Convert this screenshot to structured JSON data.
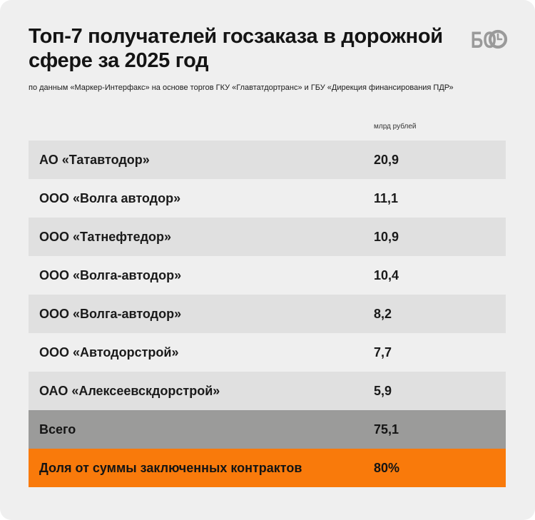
{
  "title": "Топ-7 получателей госзаказа в дорожной сфере за 2025 год",
  "subtitle": "по данным «Маркер-Интерфакс» на основе торгов ГКУ «Главтатдортранс» и ГБУ «Дирекция финансирования ПДР»",
  "logo": {
    "text": "БО",
    "icon": "clock-icon"
  },
  "colors": {
    "background": "#efefef",
    "row_shade": "#e0e0e0",
    "total_row": "#9b9b9a",
    "share_row": "#f97a0b",
    "logo": "#9a9a9a"
  },
  "chart_data": {
    "type": "table",
    "title": "Топ-7 получателей госзаказа в дорожной сфере за 2025 год",
    "subtitle": "по данным «Маркер-Интерфакс» на основе торгов ГКУ «Главтатдортранс» и ГБУ «Дирекция финансирования ПДР»",
    "unit": "млрд рублей",
    "rows": [
      {
        "name": "АО «Татавтодор»",
        "value": "20,9"
      },
      {
        "name": "ООО «Волга автодор»",
        "value": "11,1"
      },
      {
        "name": "ООО «Татнефтедор»",
        "value": "10,9"
      },
      {
        "name": "ООО «Волга-автодор»",
        "value": "10,4"
      },
      {
        "name": "ООО «Волга-автодор»",
        "value": "8,2"
      },
      {
        "name": "ООО «Автодорстрой»",
        "value": "7,7"
      },
      {
        "name": "ОАО «Алексеевскдорстрой»",
        "value": "5,9"
      }
    ],
    "total": {
      "name": "Всего",
      "value": "75,1"
    },
    "share": {
      "name": "Доля от суммы заключенных контрактов",
      "value": "80%"
    }
  }
}
